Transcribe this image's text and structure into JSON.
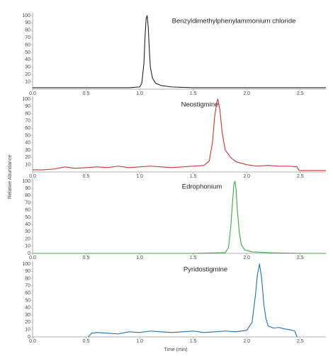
{
  "y_label": "Relative Abundance",
  "x_label": "Time (min)",
  "chart_data": [
    {
      "type": "line",
      "title": "Benzyldimethylphenylammonium chloride",
      "color": "#222222",
      "x": [
        0,
        0.3,
        0.6,
        0.9,
        1.0,
        1.02,
        1.04,
        1.05,
        1.06,
        1.07,
        1.08,
        1.09,
        1.1,
        1.12,
        1.15,
        1.2,
        1.3,
        1.5,
        1.8,
        2.2,
        2.74
      ],
      "values": [
        2,
        2,
        2,
        2,
        3,
        8,
        35,
        70,
        95,
        100,
        85,
        55,
        30,
        15,
        8,
        5,
        3,
        2,
        2,
        2,
        2
      ],
      "xlim": [
        0,
        2.74
      ],
      "ylim": [
        0,
        100
      ],
      "xticks": [
        {
          "value": 0,
          "label": "0.0"
        },
        0.5,
        {
          "value": 1,
          "label": "1.0"
        },
        1.5,
        {
          "value": 2,
          "label": "2.0"
        },
        2.5
      ],
      "yticks": [
        10,
        20,
        30,
        40,
        50,
        60,
        70,
        80,
        90,
        100
      ]
    },
    {
      "type": "line",
      "title": "Neostigmine",
      "color": "#d03030",
      "x": [
        0,
        0.1,
        0.2,
        0.3,
        0.4,
        0.5,
        0.6,
        0.7,
        0.8,
        0.9,
        1.0,
        1.1,
        1.2,
        1.3,
        1.4,
        1.5,
        1.6,
        1.65,
        1.68,
        1.7,
        1.72,
        1.73,
        1.75,
        1.77,
        1.8,
        1.85,
        1.9,
        2.0,
        2.1,
        2.2,
        2.3,
        2.4,
        2.47,
        2.49,
        2.6,
        2.74
      ],
      "values": [
        3,
        3,
        4,
        7,
        5,
        6,
        7,
        6,
        8,
        6,
        7,
        8,
        7,
        6,
        7,
        8,
        9,
        15,
        40,
        75,
        95,
        100,
        85,
        55,
        30,
        20,
        14,
        10,
        8,
        9,
        8,
        8,
        7,
        2,
        2,
        2
      ],
      "xlim": [
        0,
        2.74
      ],
      "ylim": [
        0,
        100
      ],
      "xticks": [
        {
          "value": 0,
          "label": "0.0"
        },
        0.5,
        {
          "value": 1,
          "label": "1.0"
        },
        1.5,
        {
          "value": 2,
          "label": "2.0"
        },
        2.5
      ],
      "yticks": [
        10,
        20,
        30,
        40,
        50,
        60,
        70,
        80,
        90,
        100
      ]
    },
    {
      "type": "line",
      "title": "Edrophonium",
      "color": "#3aa845",
      "x": [
        0,
        0.5,
        1.0,
        1.5,
        1.8,
        1.83,
        1.85,
        1.87,
        1.88,
        1.89,
        1.9,
        1.91,
        1.93,
        1.95,
        1.98,
        2.05,
        2.2,
        2.5,
        2.74
      ],
      "values": [
        0,
        0,
        0,
        0,
        1,
        8,
        35,
        75,
        95,
        100,
        90,
        65,
        30,
        12,
        5,
        2,
        1,
        0,
        0
      ],
      "xlim": [
        0,
        2.74
      ],
      "ylim": [
        0,
        100
      ],
      "xticks": [
        {
          "value": 0,
          "label": "0.0"
        },
        0.5,
        {
          "value": 1,
          "label": "1.0"
        },
        1.5,
        {
          "value": 2,
          "label": "2.0"
        },
        2.5
      ],
      "yticks": [
        0,
        10,
        20,
        30,
        40,
        50,
        60,
        70,
        80,
        90,
        100
      ]
    },
    {
      "type": "line",
      "title": "Pyridostigmine",
      "color": "#1f6fae",
      "x": [
        0.52,
        0.55,
        0.6,
        0.7,
        0.8,
        0.9,
        1.0,
        1.1,
        1.2,
        1.3,
        1.4,
        1.5,
        1.6,
        1.7,
        1.8,
        1.9,
        2.0,
        2.05,
        2.08,
        2.1,
        2.12,
        2.14,
        2.16,
        2.18,
        2.2,
        2.25,
        2.3,
        2.35,
        2.4,
        2.45,
        2.47
      ],
      "values": [
        0,
        5,
        6,
        5,
        4,
        7,
        6,
        8,
        7,
        6,
        7,
        8,
        6,
        7,
        8,
        7,
        9,
        20,
        55,
        85,
        100,
        80,
        45,
        25,
        15,
        12,
        13,
        11,
        10,
        8,
        0
      ],
      "xlim": [
        0,
        2.74
      ],
      "ylim": [
        0,
        100
      ],
      "xticks": [
        {
          "value": 0,
          "label": "0.0"
        },
        0.5,
        {
          "value": 1,
          "label": "1.0"
        },
        1.5,
        {
          "value": 2,
          "label": "2.0"
        },
        2.5
      ],
      "yticks": [
        0,
        10,
        20,
        30,
        40,
        50,
        60,
        70,
        80,
        90,
        100
      ]
    }
  ]
}
